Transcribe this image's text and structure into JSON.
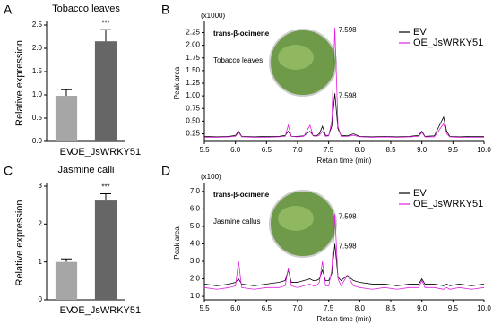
{
  "chart_data": [
    {
      "type": "bar",
      "panel": "A",
      "title": "Tobacco leaves",
      "ylabel": "Relative expression",
      "categories": [
        "EV",
        "OE_JsWRKY51"
      ],
      "values": [
        0.98,
        2.15
      ],
      "errors": [
        0.13,
        0.25
      ],
      "colors": [
        "#a6a6a6",
        "#666666"
      ],
      "annotation": "***",
      "ylim": [
        0,
        2.5
      ],
      "yticks": [
        {
          "value": 0,
          "label": "0.0"
        },
        0.5,
        {
          "value": 1,
          "label": "1.0"
        },
        1.5,
        {
          "value": 2,
          "label": "2.0"
        },
        2.5
      ]
    },
    {
      "type": "line",
      "panel": "B",
      "unit": "(x1000)",
      "ylabel": "Peak area",
      "xlabel": "Retain time (min)",
      "compound": "trans-β-ocimene",
      "sample": "Tobacco leaves",
      "legend": "upper right",
      "x": [
        5.5,
        5.7,
        5.9,
        6.0,
        6.05,
        6.1,
        6.3,
        6.5,
        6.7,
        6.8,
        6.85,
        6.9,
        7.0,
        7.1,
        7.2,
        7.25,
        7.3,
        7.35,
        7.4,
        7.45,
        7.5,
        7.55,
        7.6,
        7.65,
        7.7,
        7.8,
        7.9,
        8.0,
        8.2,
        8.4,
        8.6,
        8.8,
        8.95,
        9.0,
        9.05,
        9.2,
        9.35,
        9.4,
        9.45,
        9.6,
        9.8,
        10.0
      ],
      "series": [
        {
          "name": "EV",
          "color": "#000000",
          "peak_label": "7.598",
          "values": [
            0.2,
            0.19,
            0.2,
            0.22,
            0.3,
            0.2,
            0.19,
            0.2,
            0.2,
            0.22,
            0.3,
            0.2,
            0.2,
            0.21,
            0.3,
            0.22,
            0.21,
            0.25,
            0.4,
            0.22,
            0.22,
            0.4,
            1.05,
            0.35,
            0.22,
            0.21,
            0.25,
            0.2,
            0.19,
            0.2,
            0.19,
            0.2,
            0.22,
            0.3,
            0.2,
            0.21,
            0.58,
            0.3,
            0.2,
            0.19,
            0.2,
            0.2
          ]
        },
        {
          "name": "OE_JsWRKY51",
          "color": "#e020e0",
          "peak_label": "7.598",
          "values": [
            0.18,
            0.18,
            0.19,
            0.2,
            0.28,
            0.19,
            0.18,
            0.18,
            0.19,
            0.2,
            0.42,
            0.2,
            0.19,
            0.2,
            0.42,
            0.21,
            0.2,
            0.22,
            0.3,
            0.2,
            0.21,
            0.5,
            2.35,
            0.4,
            0.2,
            0.2,
            0.22,
            0.19,
            0.18,
            0.19,
            0.18,
            0.19,
            0.2,
            0.28,
            0.19,
            0.19,
            0.45,
            0.25,
            0.19,
            0.18,
            0.18,
            0.18
          ]
        }
      ],
      "xlim": [
        5.5,
        10
      ],
      "xticks": [
        5.5,
        {
          "value": 6,
          "label": "6.0"
        },
        6.5,
        {
          "value": 7,
          "label": "7.0"
        },
        7.5,
        {
          "value": 8,
          "label": "8.0"
        },
        8.5,
        {
          "value": 9,
          "label": "9.0"
        },
        9.5,
        {
          "value": 10,
          "label": "10.0"
        }
      ],
      "ylim": [
        0.1,
        2.4
      ],
      "yticks": [
        0.25,
        {
          "value": 0.5,
          "label": "0.50"
        },
        0.75,
        {
          "value": 1,
          "label": "1.00"
        },
        1.25,
        {
          "value": 1.5,
          "label": "1.50"
        },
        1.75,
        {
          "value": 2,
          "label": "2.00"
        },
        2.25
      ]
    },
    {
      "type": "bar",
      "panel": "C",
      "title": "Jasmine calli",
      "ylabel": "Relative expression",
      "categories": [
        "EV",
        "OE_JsWRKY51"
      ],
      "values": [
        1.0,
        2.62
      ],
      "errors": [
        0.08,
        0.18
      ],
      "colors": [
        "#a6a6a6",
        "#666666"
      ],
      "annotation": "***",
      "ylim": [
        0,
        3
      ],
      "yticks": [
        0,
        1,
        2,
        3
      ]
    },
    {
      "type": "line",
      "panel": "D",
      "unit": "(x100)",
      "ylabel": "Peak area",
      "xlabel": "Retain time (min)",
      "compound": "trans-β-ocimene",
      "sample": "Jasmine callus",
      "legend": "upper right",
      "x": [
        5.5,
        5.7,
        5.9,
        6.0,
        6.05,
        6.1,
        6.3,
        6.5,
        6.7,
        6.8,
        6.85,
        6.9,
        7.0,
        7.1,
        7.2,
        7.25,
        7.3,
        7.35,
        7.4,
        7.45,
        7.5,
        7.55,
        7.6,
        7.65,
        7.7,
        7.8,
        7.9,
        8.0,
        8.2,
        8.4,
        8.6,
        8.8,
        8.95,
        9.0,
        9.05,
        9.2,
        9.35,
        9.4,
        9.45,
        9.6,
        9.8,
        10.0
      ],
      "series": [
        {
          "name": "EV",
          "color": "#000000",
          "peak_label": "7.598",
          "values": [
            1.7,
            1.6,
            1.7,
            1.8,
            2.0,
            1.7,
            1.6,
            1.7,
            1.8,
            1.9,
            2.5,
            1.8,
            1.8,
            1.9,
            2.0,
            1.9,
            1.9,
            2.0,
            2.5,
            1.9,
            1.9,
            2.3,
            4.0,
            2.1,
            1.9,
            2.2,
            1.9,
            1.8,
            1.7,
            1.7,
            1.6,
            1.7,
            1.7,
            2.0,
            1.7,
            1.7,
            1.6,
            1.7,
            1.6,
            1.7,
            1.6,
            1.7
          ]
        },
        {
          "name": "OE_JsWRKY51",
          "color": "#e020e0",
          "peak_label": "7.598",
          "values": [
            1.5,
            1.4,
            1.5,
            1.6,
            3.0,
            1.5,
            1.4,
            1.5,
            1.5,
            1.6,
            2.6,
            1.6,
            1.5,
            1.6,
            1.7,
            1.6,
            1.6,
            1.8,
            3.0,
            1.6,
            1.6,
            2.5,
            5.7,
            2.0,
            1.6,
            2.2,
            1.6,
            1.5,
            1.4,
            1.5,
            1.4,
            1.5,
            1.5,
            1.9,
            1.5,
            1.5,
            1.4,
            1.5,
            1.4,
            1.5,
            1.4,
            1.5
          ]
        }
      ],
      "xlim": [
        5.5,
        10
      ],
      "xticks": [
        5.5,
        {
          "value": 6,
          "label": "6.0"
        },
        6.5,
        {
          "value": 7,
          "label": "7.0"
        },
        7.5,
        {
          "value": 8,
          "label": "8.0"
        },
        8.5,
        {
          "value": 9,
          "label": "9.0"
        },
        9.5,
        {
          "value": 10,
          "label": "10.0"
        }
      ],
      "ylim": [
        0.8,
        7.3
      ],
      "yticks": [
        {
          "value": 1,
          "label": "1.0"
        },
        {
          "value": 2,
          "label": "2.0"
        },
        {
          "value": 3,
          "label": "3.0"
        },
        {
          "value": 4,
          "label": "4.0"
        },
        {
          "value": 5,
          "label": "5.0"
        },
        {
          "value": 6,
          "label": "6.0"
        },
        {
          "value": 7,
          "label": "7.0"
        }
      ]
    }
  ]
}
